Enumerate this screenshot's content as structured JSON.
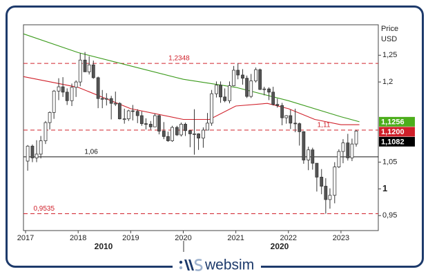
{
  "chart_data": {
    "type": "candlestick",
    "y_axis_title": [
      "Price",
      "USD"
    ],
    "xlim": [
      2016.96,
      2023.71
    ],
    "ylim": [
      0.922,
      1.307
    ],
    "xticks": [
      2017,
      2018,
      2019,
      2020,
      2021,
      2022,
      2023
    ],
    "yticks": [
      {
        "value": 1.25,
        "label": "1,25"
      },
      {
        "value": 1.2,
        "label": "1,2"
      },
      {
        "value": 1.05,
        "label": "1,05"
      },
      1,
      {
        "value": 0.95,
        "label": "0,95"
      }
    ],
    "decade_labels": [
      "2010",
      "2020"
    ],
    "x": [
      2017.04,
      2017.13,
      2017.21,
      2017.29,
      2017.38,
      2017.46,
      2017.54,
      2017.63,
      2017.71,
      2017.79,
      2017.88,
      2017.96,
      2018.04,
      2018.13,
      2018.21,
      2018.29,
      2018.38,
      2018.46,
      2018.54,
      2018.63,
      2018.71,
      2018.79,
      2018.88,
      2018.96,
      2019.04,
      2019.13,
      2019.21,
      2019.29,
      2019.38,
      2019.46,
      2019.54,
      2019.63,
      2019.71,
      2019.79,
      2019.88,
      2019.96,
      2020.04,
      2020.13,
      2020.21,
      2020.29,
      2020.38,
      2020.46,
      2020.54,
      2020.63,
      2020.71,
      2020.79,
      2020.88,
      2020.96,
      2021.04,
      2021.13,
      2021.21,
      2021.29,
      2021.38,
      2021.46,
      2021.54,
      2021.63,
      2021.71,
      2021.79,
      2021.88,
      2021.96,
      2022.04,
      2022.13,
      2022.21,
      2022.29,
      2022.38,
      2022.46,
      2022.54,
      2022.63,
      2022.71,
      2022.79,
      2022.88,
      2022.96,
      2023.04,
      2023.13,
      2023.21,
      2023.29
    ],
    "open": [
      1.052,
      1.08,
      1.058,
      1.065,
      1.09,
      1.124,
      1.143,
      1.183,
      1.191,
      1.181,
      1.165,
      1.19,
      1.2,
      1.241,
      1.219,
      1.232,
      1.208,
      1.169,
      1.168,
      1.169,
      1.16,
      1.16,
      1.131,
      1.131,
      1.146,
      1.145,
      1.137,
      1.122,
      1.121,
      1.116,
      1.137,
      1.108,
      1.098,
      1.09,
      1.115,
      1.101,
      1.121,
      1.109,
      1.103,
      1.103,
      1.095,
      1.11,
      1.123,
      1.178,
      1.194,
      1.172,
      1.165,
      1.193,
      1.222,
      1.213,
      1.207,
      1.173,
      1.202,
      1.223,
      1.186,
      1.187,
      1.181,
      1.158,
      1.156,
      1.133,
      1.137,
      1.123,
      1.122,
      1.107,
      1.054,
      1.073,
      1.048,
      1.022,
      1.005,
      0.98,
      0.988,
      1.041,
      1.07,
      1.086,
      1.058,
      1.084
    ],
    "high": [
      1.082,
      1.083,
      1.091,
      1.099,
      1.127,
      1.145,
      1.185,
      1.207,
      1.209,
      1.188,
      1.197,
      1.203,
      1.254,
      1.256,
      1.248,
      1.24,
      1.21,
      1.185,
      1.179,
      1.174,
      1.182,
      1.162,
      1.15,
      1.148,
      1.157,
      1.149,
      1.145,
      1.132,
      1.127,
      1.141,
      1.139,
      1.125,
      1.107,
      1.118,
      1.118,
      1.124,
      1.124,
      1.11,
      1.149,
      1.104,
      1.115,
      1.142,
      1.185,
      1.201,
      1.201,
      1.188,
      1.201,
      1.23,
      1.235,
      1.224,
      1.212,
      1.215,
      1.227,
      1.225,
      1.191,
      1.19,
      1.191,
      1.169,
      1.161,
      1.138,
      1.148,
      1.15,
      1.124,
      1.108,
      1.079,
      1.077,
      1.048,
      1.037,
      1.02,
      1.001,
      1.05,
      1.074,
      1.093,
      1.103,
      1.094,
      1.11
    ],
    "low": [
      1.034,
      1.05,
      1.05,
      1.057,
      1.084,
      1.111,
      1.131,
      1.166,
      1.172,
      1.157,
      1.155,
      1.172,
      1.192,
      1.219,
      1.214,
      1.206,
      1.151,
      1.151,
      1.156,
      1.13,
      1.155,
      1.13,
      1.122,
      1.127,
      1.128,
      1.123,
      1.118,
      1.111,
      1.111,
      1.116,
      1.102,
      1.093,
      1.088,
      1.088,
      1.099,
      1.098,
      1.099,
      1.078,
      1.064,
      1.073,
      1.077,
      1.11,
      1.118,
      1.171,
      1.161,
      1.162,
      1.16,
      1.192,
      1.205,
      1.195,
      1.17,
      1.17,
      1.199,
      1.185,
      1.175,
      1.166,
      1.156,
      1.152,
      1.119,
      1.122,
      1.112,
      1.106,
      1.081,
      1.047,
      1.035,
      1.036,
      0.995,
      0.99,
      0.9535,
      0.963,
      0.973,
      1.039,
      1.048,
      1.053,
      1.052,
      1.079
    ],
    "close": [
      1.08,
      1.058,
      1.065,
      1.09,
      1.124,
      1.143,
      1.183,
      1.191,
      1.181,
      1.165,
      1.19,
      1.2,
      1.241,
      1.219,
      1.232,
      1.208,
      1.169,
      1.168,
      1.169,
      1.16,
      1.16,
      1.131,
      1.131,
      1.146,
      1.145,
      1.137,
      1.122,
      1.121,
      1.116,
      1.137,
      1.108,
      1.098,
      1.09,
      1.115,
      1.101,
      1.121,
      1.109,
      1.103,
      1.103,
      1.095,
      1.11,
      1.123,
      1.178,
      1.194,
      1.172,
      1.165,
      1.193,
      1.222,
      1.213,
      1.207,
      1.173,
      1.202,
      1.223,
      1.186,
      1.187,
      1.181,
      1.158,
      1.156,
      1.133,
      1.137,
      1.123,
      1.122,
      1.107,
      1.054,
      1.073,
      1.048,
      1.022,
      1.005,
      0.98,
      0.988,
      1.041,
      1.07,
      1.086,
      1.058,
      1.084,
      1.1082
    ],
    "up_color": "#ffffff",
    "down_color": "#555555",
    "edge_color": "#333333",
    "lines": [
      {
        "color": "#3a9a1a",
        "x": [
          2016.96,
          2018.0,
          2019.0,
          2020.0,
          2021.0,
          2022.0,
          2023.0,
          2023.35
        ],
        "values": [
          1.29,
          1.255,
          1.23,
          1.205,
          1.19,
          1.165,
          1.135,
          1.1256
        ]
      },
      {
        "color": "#d0202a",
        "x": [
          2016.96,
          2018.0,
          2019.0,
          2020.0,
          2020.5,
          2021.0,
          2021.6,
          2022.0,
          2022.5,
          2023.0,
          2023.35
        ],
        "values": [
          1.21,
          1.19,
          1.15,
          1.13,
          1.13,
          1.155,
          1.16,
          1.15,
          1.13,
          1.12,
          1.12
        ]
      }
    ],
    "levels": [
      {
        "value": 1.2348,
        "label": "1,2348",
        "color": "#d0202a",
        "dashed": true,
        "label_x": 2019.72
      },
      {
        "value": 1.11,
        "label": "1,11",
        "color": "#d0202a",
        "dashed": true,
        "label_x": 2022.55
      },
      {
        "value": 1.06,
        "label": "1,06",
        "color": "#111111",
        "dashed": false,
        "label_x": 2018.12
      },
      {
        "value": 0.9535,
        "label": "0,9535",
        "color": "#d0202a",
        "dashed": true,
        "label_x": 2017.15
      }
    ],
    "last_values": [
      {
        "value": 1.1256,
        "label": "1,1256",
        "color": "#4cae1c"
      },
      {
        "value": 1.12,
        "label": "1,1200",
        "color": "#d0202a"
      },
      {
        "value": 1.1082,
        "label": "1,1082",
        "color": "#000000"
      }
    ]
  },
  "brand": "websim"
}
